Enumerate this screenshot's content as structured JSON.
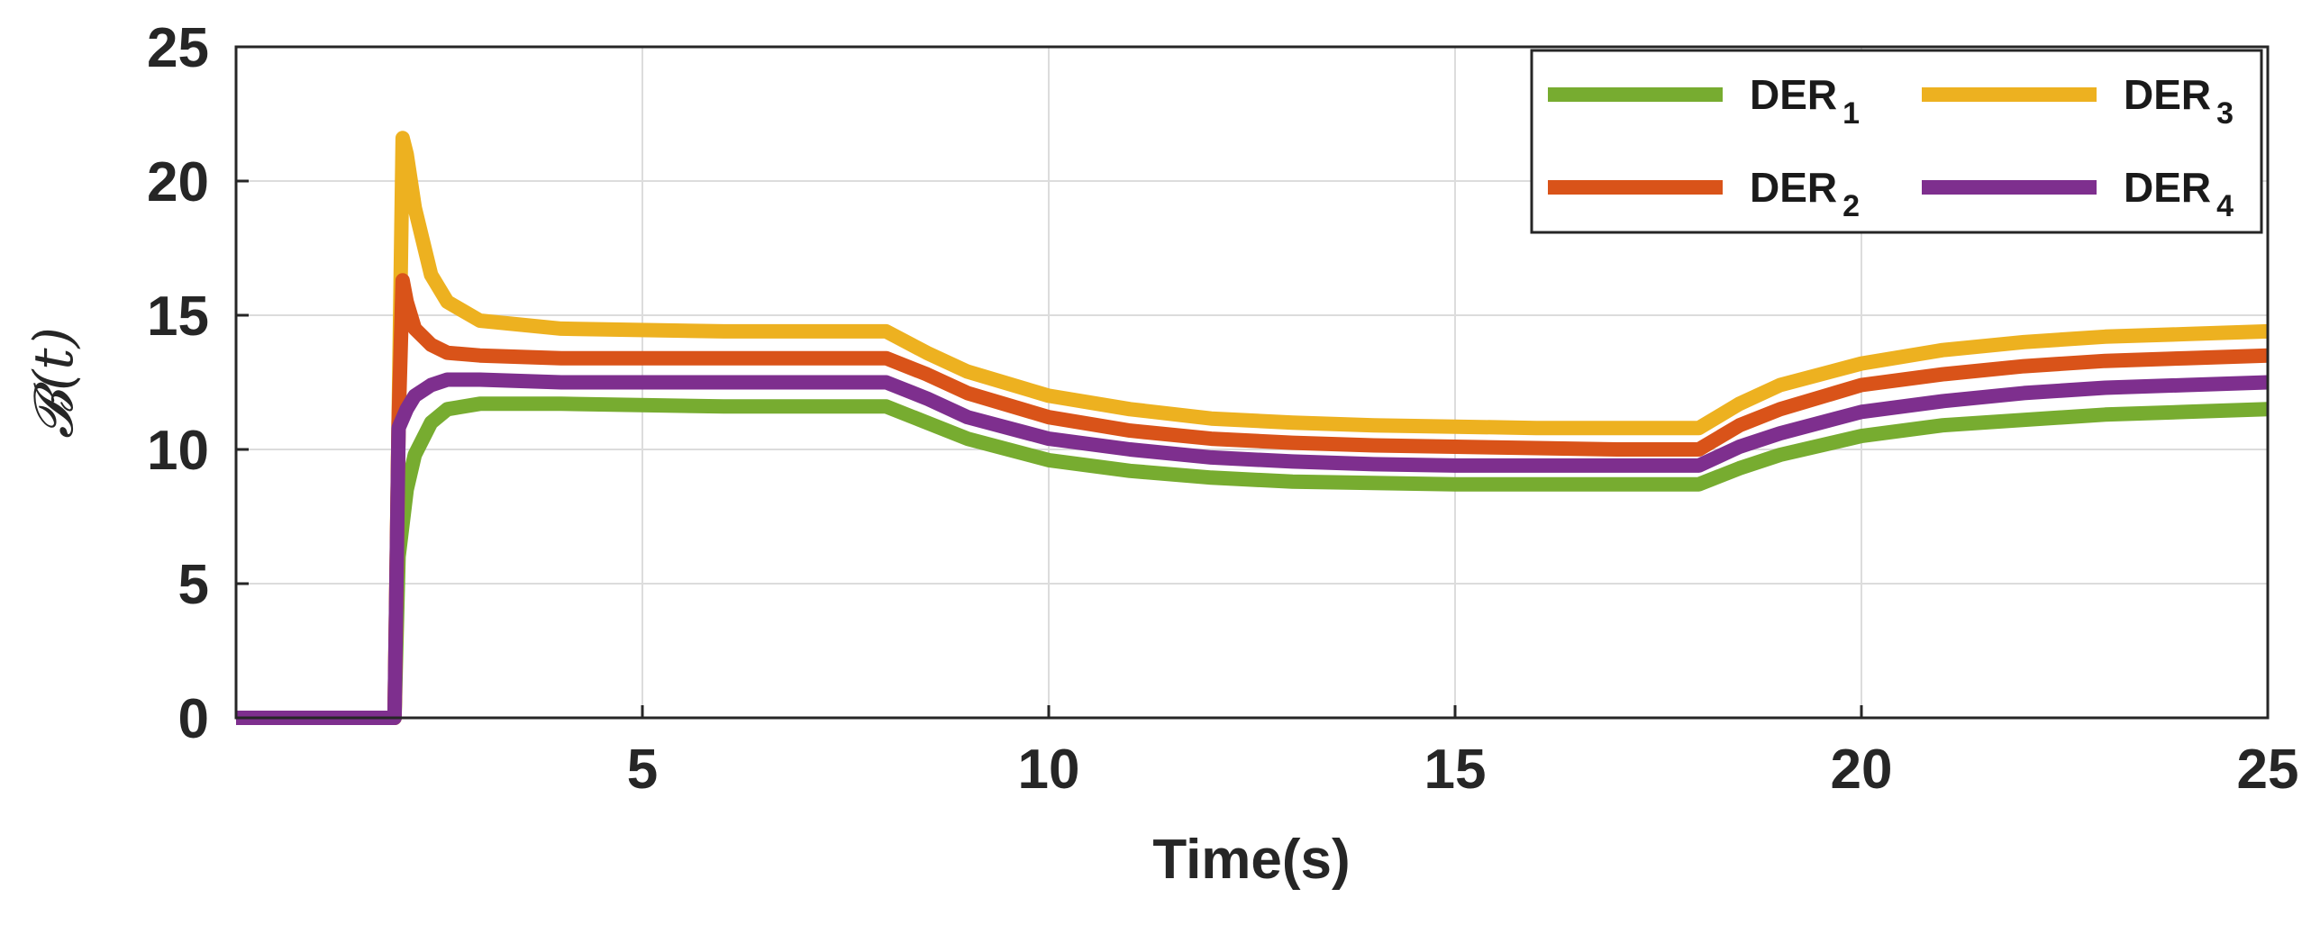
{
  "chart_data": {
    "type": "line",
    "xlabel": "Time(s)",
    "ylabel": "𝓑(t)",
    "xlim": [
      0,
      25
    ],
    "ylim": [
      0,
      25
    ],
    "xticks": [
      5,
      10,
      15,
      20,
      25
    ],
    "yticks": [
      0,
      5,
      10,
      15,
      20,
      25
    ],
    "xtick_labels": [
      "5",
      "10",
      "15",
      "20",
      "25"
    ],
    "ytick_labels": [
      "0",
      "5",
      "10",
      "15",
      "20",
      "25"
    ],
    "grid": true,
    "legend_position": "top-right",
    "legend_columns": 2,
    "series": [
      {
        "name": "DER1",
        "label_main": "DER",
        "label_sub": "1",
        "color": "#77AC30",
        "x": [
          0,
          1.9,
          1.95,
          2.0,
          2.1,
          2.2,
          2.4,
          2.6,
          3.0,
          4,
          6,
          8,
          8.5,
          9,
          10,
          11,
          12,
          13,
          14,
          15,
          16,
          17,
          18,
          18.5,
          19,
          20,
          21,
          22,
          23,
          24,
          25
        ],
        "y": [
          0,
          0,
          0,
          6.0,
          8.5,
          9.8,
          11.0,
          11.5,
          11.7,
          11.7,
          11.6,
          11.6,
          11.0,
          10.4,
          9.6,
          9.2,
          8.95,
          8.8,
          8.75,
          8.7,
          8.7,
          8.7,
          8.7,
          9.3,
          9.8,
          10.5,
          10.9,
          11.1,
          11.3,
          11.4,
          11.5
        ]
      },
      {
        "name": "DER2",
        "label_main": "DER",
        "label_sub": "2",
        "color": "#D95319",
        "x": [
          0,
          1.9,
          1.95,
          2.0,
          2.05,
          2.1,
          2.2,
          2.4,
          2.6,
          3.0,
          4,
          6,
          8,
          8.5,
          9,
          10,
          11,
          12,
          13,
          14,
          15,
          16,
          17,
          18,
          18.5,
          19,
          20,
          21,
          22,
          23,
          24,
          25
        ],
        "y": [
          0,
          0,
          0,
          11.0,
          16.3,
          15.5,
          14.5,
          13.9,
          13.6,
          13.5,
          13.4,
          13.4,
          13.4,
          12.8,
          12.1,
          11.2,
          10.7,
          10.4,
          10.25,
          10.15,
          10.1,
          10.05,
          10.0,
          10.0,
          10.9,
          11.5,
          12.4,
          12.8,
          13.1,
          13.3,
          13.4,
          13.5
        ]
      },
      {
        "name": "DER3",
        "label_main": "DER",
        "label_sub": "3",
        "color": "#EDB120",
        "x": [
          0,
          1.9,
          1.95,
          2.0,
          2.05,
          2.1,
          2.2,
          2.4,
          2.6,
          3.0,
          4,
          6,
          8,
          8.5,
          9,
          10,
          11,
          12,
          13,
          14,
          15,
          16,
          17,
          18,
          18.5,
          19,
          20,
          21,
          22,
          23,
          24,
          25
        ],
        "y": [
          0,
          0,
          0,
          11.0,
          21.6,
          21.0,
          19.0,
          16.5,
          15.5,
          14.8,
          14.5,
          14.4,
          14.4,
          13.6,
          12.9,
          12.0,
          11.5,
          11.15,
          11.0,
          10.9,
          10.85,
          10.8,
          10.8,
          10.8,
          11.7,
          12.4,
          13.2,
          13.7,
          14.0,
          14.2,
          14.3,
          14.4
        ]
      },
      {
        "name": "DER4",
        "label_main": "DER",
        "label_sub": "4",
        "color": "#7E2F8E",
        "x": [
          0,
          1.9,
          1.95,
          2.0,
          2.1,
          2.2,
          2.4,
          2.6,
          3.0,
          4,
          6,
          8,
          8.5,
          9,
          10,
          11,
          12,
          13,
          14,
          15,
          16,
          17,
          18,
          18.5,
          19,
          20,
          21,
          22,
          23,
          24,
          25
        ],
        "y": [
          0,
          0,
          0,
          10.8,
          11.5,
          12.0,
          12.4,
          12.6,
          12.6,
          12.5,
          12.5,
          12.5,
          11.9,
          11.2,
          10.4,
          10.0,
          9.7,
          9.55,
          9.45,
          9.4,
          9.4,
          9.4,
          9.4,
          10.1,
          10.6,
          11.4,
          11.8,
          12.1,
          12.3,
          12.4,
          12.5
        ]
      }
    ]
  }
}
